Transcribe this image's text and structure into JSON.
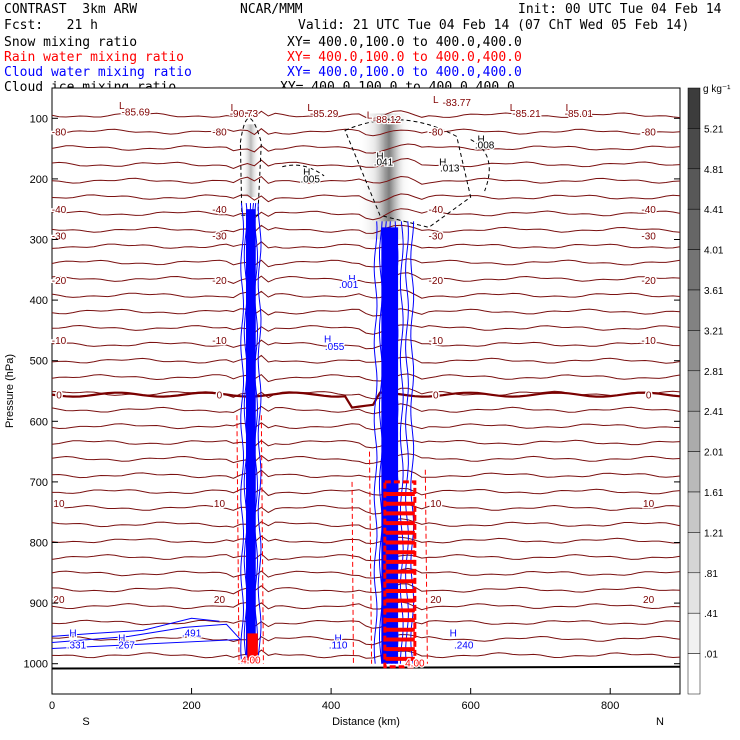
{
  "header": {
    "model": "CONTRAST  3km ARW",
    "center": "NCAR/MMM",
    "init": "Init: 00 UTC Tue 04 Feb 14",
    "fcst": "Fcst:   21 h",
    "valid": "Valid: 21 UTC Tue 04 Feb 14 (07 ChT Wed 05 Feb 14)",
    "fields": [
      {
        "name": "Snow mixing ratio",
        "xy": "XY= 400.0,100.0 to 400.0,400.0",
        "color": "#000000"
      },
      {
        "name": "Rain water mixing ratio",
        "xy": "XY= 400.0,100.0 to 400.0,400.0",
        "color": "#ff0000"
      },
      {
        "name": "Cloud water mixing ratio",
        "xy": "XY= 400.0,100.0 to 400.0,400.0",
        "color": "#0000ff"
      },
      {
        "name": "Cloud ice mixing ratio",
        "xy": "XY= 400.0,100.0 to 400.0,400.0",
        "color": "#000000"
      }
    ]
  },
  "chart_data": {
    "type": "contour cross-section",
    "xlabel": "Distance (km)",
    "ylabel": "Pressure (hPa)",
    "xlim": [
      0,
      900
    ],
    "ylim": [
      1050,
      50
    ],
    "x_ticks": [
      0,
      200,
      400,
      600,
      800
    ],
    "y_ticks": [
      100,
      200,
      300,
      400,
      500,
      600,
      700,
      800,
      900,
      1000
    ],
    "end_labels": {
      "left": "S",
      "right": "N"
    },
    "temperature_isotherms": [
      {
        "label": "-80",
        "p": 122
      },
      {
        "label": "-40",
        "p": 250
      },
      {
        "label": "-30",
        "p": 293
      },
      {
        "label": "-20",
        "p": 367
      },
      {
        "label": "-10",
        "p": 466
      },
      {
        "label": "0",
        "p": 556
      },
      {
        "label": "10",
        "p": 735
      },
      {
        "label": "20",
        "p": 893
      }
    ],
    "contour_labels": [
      {
        "text": "L",
        "x": 100,
        "p": 85,
        "color": "#800000"
      },
      {
        "text": "-85.69",
        "x": 120,
        "p": 95,
        "color": "#800000"
      },
      {
        "text": "L",
        "x": 260,
        "p": 88,
        "color": "#800000"
      },
      {
        "text": "-90.73",
        "x": 275,
        "p": 98,
        "color": "#800000"
      },
      {
        "text": "L",
        "x": 370,
        "p": 88,
        "color": "#800000"
      },
      {
        "text": "-85.29",
        "x": 390,
        "p": 98,
        "color": "#800000"
      },
      {
        "text": "L",
        "x": 455,
        "p": 100,
        "color": "#800000"
      },
      {
        "text": "-88.12",
        "x": 480,
        "p": 108,
        "color": "#800000"
      },
      {
        "text": "L",
        "x": 550,
        "p": 75,
        "color": "#800000"
      },
      {
        "text": "-83.77",
        "x": 580,
        "p": 80,
        "color": "#800000"
      },
      {
        "text": "L",
        "x": 660,
        "p": 88,
        "color": "#800000"
      },
      {
        "text": "-85.21",
        "x": 680,
        "p": 98,
        "color": "#800000"
      },
      {
        "text": "L",
        "x": 740,
        "p": 88,
        "color": "#800000"
      },
      {
        "text": "-85.01",
        "x": 755,
        "p": 98,
        "color": "#800000"
      },
      {
        "text": "H",
        "x": 615,
        "p": 140,
        "color": "#000000"
      },
      {
        "text": ".008",
        "x": 620,
        "p": 150,
        "color": "#000000"
      },
      {
        "text": "H",
        "x": 470,
        "p": 168,
        "color": "#000000"
      },
      {
        "text": ".041",
        "x": 475,
        "p": 178,
        "color": "#000000"
      },
      {
        "text": "H",
        "x": 560,
        "p": 178,
        "color": "#000000"
      },
      {
        "text": ".013",
        "x": 570,
        "p": 188,
        "color": "#000000"
      },
      {
        "text": "H",
        "x": 365,
        "p": 194,
        "color": "#000000"
      },
      {
        "text": ".005",
        "x": 370,
        "p": 206,
        "color": "#000000"
      },
      {
        "text": "H",
        "x": 430,
        "p": 370,
        "color": "#0000ff"
      },
      {
        "text": ".001",
        "x": 425,
        "p": 380,
        "color": "#0000ff"
      },
      {
        "text": "H",
        "x": 395,
        "p": 470,
        "color": "#0000ff"
      },
      {
        "text": ".055",
        "x": 405,
        "p": 482,
        "color": "#0000ff"
      },
      {
        "text": "H",
        "x": 410,
        "p": 963,
        "color": "#0000ff"
      },
      {
        "text": ".110",
        "x": 410,
        "p": 975,
        "color": "#0000ff"
      },
      {
        "text": "H",
        "x": 575,
        "p": 955,
        "color": "#0000ff"
      },
      {
        "text": ".240",
        "x": 590,
        "p": 975,
        "color": "#0000ff"
      },
      {
        "text": "H",
        "x": 100,
        "p": 963,
        "color": "#0000ff"
      },
      {
        "text": ".267",
        "x": 105,
        "p": 975,
        "color": "#0000ff"
      },
      {
        "text": "H",
        "x": 30,
        "p": 955,
        "color": "#0000ff"
      },
      {
        "text": ".331",
        "x": 35,
        "p": 975,
        "color": "#0000ff"
      },
      {
        "text": ".491",
        "x": 200,
        "p": 955,
        "color": "#0000ff"
      },
      {
        "text": "4.00",
        "x": 285,
        "p": 1000,
        "color": "#ff0000"
      },
      {
        "text": "4.00",
        "x": 520,
        "p": 1005,
        "color": "#ff0000"
      }
    ],
    "colorbar": {
      "units": "g kg⁻¹",
      "levels": [
        "5.21",
        "4.81",
        "4.41",
        "4.01",
        "3.61",
        "3.21",
        "2.81",
        "2.41",
        "2.01",
        "1.61",
        "1.21",
        ".81",
        ".41",
        ".01"
      ]
    }
  }
}
